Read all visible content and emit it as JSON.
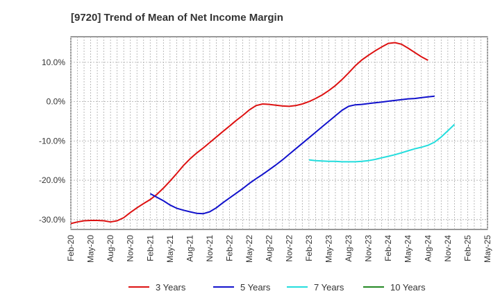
{
  "chart_data": {
    "type": "line",
    "title": "[9720]  Trend of Mean of Net Income Margin",
    "xlabel": "",
    "ylabel": "",
    "x_ticks": [
      "Feb-20",
      "May-20",
      "Aug-20",
      "Nov-20",
      "Feb-21",
      "May-21",
      "Aug-21",
      "Nov-21",
      "Feb-22",
      "May-22",
      "Aug-22",
      "Nov-22",
      "Feb-23",
      "May-23",
      "Aug-23",
      "Nov-23",
      "Feb-24",
      "May-24",
      "Aug-24",
      "Nov-24",
      "Feb-25",
      "May-25"
    ],
    "y_ticks": [
      10,
      0,
      -10,
      -20,
      -30
    ],
    "y_tick_labels": [
      "10.0%",
      "0.0%",
      "-10.0%",
      "-20.0%",
      "-30.0%"
    ],
    "ylim": [
      -32.5,
      16.5
    ],
    "grid": true,
    "legend_position": "bottom",
    "series": [
      {
        "name": "3 Years",
        "color": "#dd1111",
        "points": [
          [
            "Feb-20",
            -31.0
          ],
          [
            "Mar-20",
            -30.6
          ],
          [
            "Apr-20",
            -30.3
          ],
          [
            "May-20",
            -30.2
          ],
          [
            "Jun-20",
            -30.2
          ],
          [
            "Jul-20",
            -30.3
          ],
          [
            "Aug-20",
            -30.6
          ],
          [
            "Sep-20",
            -30.3
          ],
          [
            "Oct-20",
            -29.5
          ],
          [
            "Nov-20",
            -28.2
          ],
          [
            "Dec-20",
            -27.0
          ],
          [
            "Jan-21",
            -25.9
          ],
          [
            "Feb-21",
            -24.9
          ],
          [
            "Mar-21",
            -23.6
          ],
          [
            "Apr-21",
            -22.0
          ],
          [
            "May-21",
            -20.2
          ],
          [
            "Jun-21",
            -18.3
          ],
          [
            "Jul-21",
            -16.3
          ],
          [
            "Aug-21",
            -14.6
          ],
          [
            "Sep-21",
            -13.1
          ],
          [
            "Oct-21",
            -11.8
          ],
          [
            "Nov-21",
            -10.4
          ],
          [
            "Dec-21",
            -9.0
          ],
          [
            "Jan-22",
            -7.6
          ],
          [
            "Feb-22",
            -6.2
          ],
          [
            "Mar-22",
            -4.8
          ],
          [
            "Apr-22",
            -3.5
          ],
          [
            "May-22",
            -2.1
          ],
          [
            "Jun-22",
            -1.0
          ],
          [
            "Jul-22",
            -0.6
          ],
          [
            "Aug-22",
            -0.7
          ],
          [
            "Sep-22",
            -0.9
          ],
          [
            "Oct-22",
            -1.1
          ],
          [
            "Nov-22",
            -1.2
          ],
          [
            "Dec-22",
            -1.0
          ],
          [
            "Jan-23",
            -0.6
          ],
          [
            "Feb-23",
            0.0
          ],
          [
            "Mar-23",
            0.8
          ],
          [
            "Apr-23",
            1.7
          ],
          [
            "May-23",
            2.8
          ],
          [
            "Jun-23",
            4.1
          ],
          [
            "Jul-23",
            5.6
          ],
          [
            "Aug-23",
            7.3
          ],
          [
            "Sep-23",
            9.1
          ],
          [
            "Oct-23",
            10.6
          ],
          [
            "Nov-23",
            11.8
          ],
          [
            "Dec-23",
            12.9
          ],
          [
            "Jan-24",
            13.9
          ],
          [
            "Feb-24",
            14.8
          ],
          [
            "Mar-24",
            15.0
          ],
          [
            "Apr-24",
            14.6
          ],
          [
            "May-24",
            13.6
          ],
          [
            "Jun-24",
            12.5
          ],
          [
            "Jul-24",
            11.4
          ],
          [
            "Aug-24",
            10.5
          ]
        ]
      },
      {
        "name": "5 Years",
        "color": "#1111cc",
        "points": [
          [
            "Feb-21",
            -23.4
          ],
          [
            "Mar-21",
            -24.3
          ],
          [
            "Apr-21",
            -25.2
          ],
          [
            "May-21",
            -26.3
          ],
          [
            "Jun-21",
            -27.1
          ],
          [
            "Jul-21",
            -27.6
          ],
          [
            "Aug-21",
            -28.0
          ],
          [
            "Sep-21",
            -28.4
          ],
          [
            "Oct-21",
            -28.5
          ],
          [
            "Nov-21",
            -28.0
          ],
          [
            "Dec-21",
            -27.0
          ],
          [
            "Jan-22",
            -25.7
          ],
          [
            "Feb-22",
            -24.5
          ],
          [
            "Mar-22",
            -23.3
          ],
          [
            "Apr-22",
            -22.1
          ],
          [
            "May-22",
            -20.8
          ],
          [
            "Jun-22",
            -19.6
          ],
          [
            "Jul-22",
            -18.5
          ],
          [
            "Aug-22",
            -17.3
          ],
          [
            "Sep-22",
            -16.1
          ],
          [
            "Oct-22",
            -14.8
          ],
          [
            "Nov-22",
            -13.4
          ],
          [
            "Dec-22",
            -12.0
          ],
          [
            "Jan-23",
            -10.6
          ],
          [
            "Feb-23",
            -9.2
          ],
          [
            "Mar-23",
            -7.8
          ],
          [
            "Apr-23",
            -6.4
          ],
          [
            "May-23",
            -5.0
          ],
          [
            "Jun-23",
            -3.6
          ],
          [
            "Jul-23",
            -2.2
          ],
          [
            "Aug-23",
            -1.2
          ],
          [
            "Sep-23",
            -0.8
          ],
          [
            "Oct-23",
            -0.7
          ],
          [
            "Nov-23",
            -0.5
          ],
          [
            "Dec-23",
            -0.3
          ],
          [
            "Jan-24",
            -0.1
          ],
          [
            "Feb-24",
            0.1
          ],
          [
            "Mar-24",
            0.3
          ],
          [
            "Apr-24",
            0.5
          ],
          [
            "May-24",
            0.7
          ],
          [
            "Jun-24",
            0.8
          ],
          [
            "Jul-24",
            1.0
          ],
          [
            "Aug-24",
            1.2
          ],
          [
            "Sep-24",
            1.4
          ]
        ]
      },
      {
        "name": "7 Years",
        "color": "#22dddd",
        "points": [
          [
            "Feb-23",
            -14.8
          ],
          [
            "Mar-23",
            -15.0
          ],
          [
            "Apr-23",
            -15.1
          ],
          [
            "May-23",
            -15.2
          ],
          [
            "Jun-23",
            -15.2
          ],
          [
            "Jul-23",
            -15.3
          ],
          [
            "Aug-23",
            -15.3
          ],
          [
            "Sep-23",
            -15.3
          ],
          [
            "Oct-23",
            -15.2
          ],
          [
            "Nov-23",
            -15.0
          ],
          [
            "Dec-23",
            -14.7
          ],
          [
            "Jan-24",
            -14.3
          ],
          [
            "Feb-24",
            -13.9
          ],
          [
            "Mar-24",
            -13.5
          ],
          [
            "Apr-24",
            -13.0
          ],
          [
            "May-24",
            -12.5
          ],
          [
            "Jun-24",
            -12.0
          ],
          [
            "Jul-24",
            -11.6
          ],
          [
            "Aug-24",
            -11.1
          ],
          [
            "Sep-24",
            -10.3
          ],
          [
            "Oct-24",
            -9.0
          ],
          [
            "Nov-24",
            -7.4
          ],
          [
            "Dec-24",
            -5.8
          ]
        ]
      },
      {
        "name": "10 Years",
        "color": "#228822",
        "points": []
      }
    ]
  }
}
